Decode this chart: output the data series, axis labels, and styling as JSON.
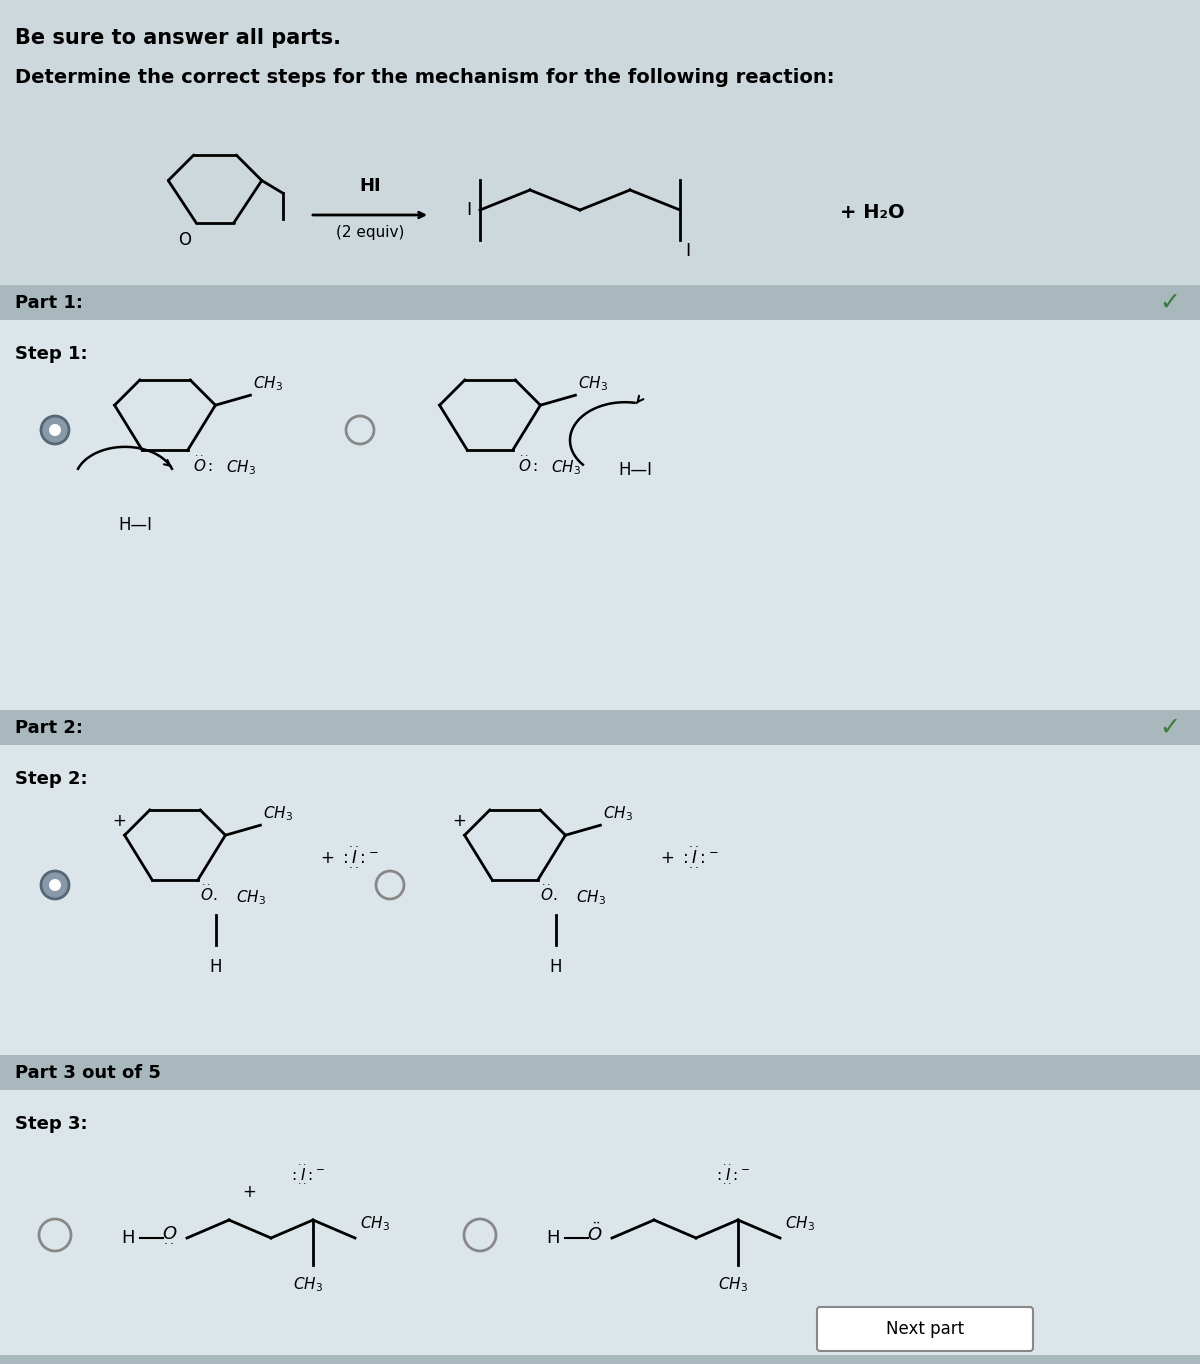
{
  "title_line1": "Be sure to answer all parts.",
  "title_line2": "Determine the correct steps for the mechanism for the following reaction:",
  "bg_color": "#cdd8dc",
  "section_bg": "#dce6ea",
  "bar_color": "#a8b8bc",
  "white": "#ffffff",
  "check_color": "#3a7a3a",
  "part1_label": "Part 1:",
  "part2_label": "Part 2:",
  "part3_label": "Part 3 out of 5",
  "step1_label": "Step 1:",
  "step2_label": "Step 2:",
  "step3_label": "Step 3:",
  "next_button": "Next part",
  "hi_label": "HI",
  "equiv_label": "(2 equiv)",
  "h2o_label": "+ H₂O"
}
